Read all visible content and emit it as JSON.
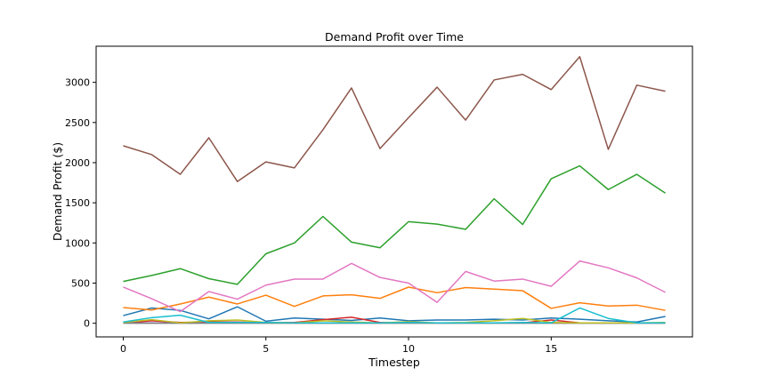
{
  "chart_data": {
    "type": "line",
    "title": "Demand Profit over Time",
    "xlabel": "Timestep",
    "ylabel": "Demand Profit ($)",
    "x": [
      0,
      1,
      2,
      3,
      4,
      5,
      6,
      7,
      8,
      9,
      10,
      11,
      12,
      13,
      14,
      15,
      16,
      17,
      18,
      19
    ],
    "xlim": [
      -0.95,
      19.95
    ],
    "ylim": [
      -170,
      3450
    ],
    "xticks": [
      0,
      5,
      10,
      15
    ],
    "yticks": [
      0,
      500,
      1000,
      1500,
      2000,
      2500,
      3000
    ],
    "grid": false,
    "series": [
      {
        "color": "#1f77b4",
        "values": [
          95,
          190,
          160,
          55,
          205,
          25,
          65,
          50,
          35,
          65,
          30,
          40,
          40,
          50,
          40,
          65,
          50,
          30,
          15,
          85
        ]
      },
      {
        "color": "#ff7f0e",
        "values": [
          195,
          165,
          240,
          325,
          240,
          350,
          210,
          340,
          355,
          310,
          450,
          380,
          445,
          425,
          405,
          185,
          255,
          215,
          225,
          160
        ]
      },
      {
        "color": "#2ca02c",
        "values": [
          520,
          595,
          680,
          555,
          485,
          865,
          1000,
          1330,
          1010,
          940,
          1265,
          1235,
          1170,
          1550,
          1230,
          1800,
          1960,
          1665,
          1855,
          1620
        ]
      },
      {
        "color": "#d62728",
        "values": [
          5,
          30,
          10,
          15,
          15,
          5,
          10,
          45,
          75,
          10,
          5,
          5,
          5,
          5,
          5,
          40,
          5,
          5,
          5,
          5
        ]
      },
      {
        "color": "#9467bd",
        "values": [
          5,
          5,
          5,
          5,
          5,
          5,
          5,
          5,
          5,
          5,
          5,
          5,
          5,
          5,
          5,
          5,
          5,
          5,
          5,
          5
        ]
      },
      {
        "color": "#8c564b",
        "values": [
          2210,
          2100,
          1855,
          2310,
          1765,
          2010,
          1935,
          2410,
          2930,
          2175,
          2560,
          2940,
          2530,
          3030,
          3100,
          2910,
          3320,
          2165,
          2965,
          2890
        ]
      },
      {
        "color": "#e377c2",
        "values": [
          450,
          305,
          145,
          395,
          300,
          475,
          550,
          550,
          745,
          570,
          500,
          260,
          645,
          525,
          550,
          460,
          775,
          690,
          565,
          385
        ]
      },
      {
        "color": "#7f7f7f",
        "values": [
          0,
          0,
          0,
          0,
          0,
          0,
          0,
          0,
          0,
          0,
          0,
          0,
          0,
          0,
          0,
          0,
          0,
          0,
          0,
          0
        ]
      },
      {
        "color": "#bcbd22",
        "values": [
          10,
          45,
          5,
          30,
          40,
          10,
          5,
          30,
          15,
          5,
          20,
          5,
          10,
          30,
          60,
          10,
          5,
          5,
          5,
          10
        ]
      },
      {
        "color": "#17becf",
        "values": [
          15,
          70,
          100,
          10,
          10,
          10,
          5,
          5,
          5,
          5,
          10,
          5,
          5,
          5,
          10,
          5,
          190,
          60,
          5,
          5
        ]
      }
    ]
  }
}
